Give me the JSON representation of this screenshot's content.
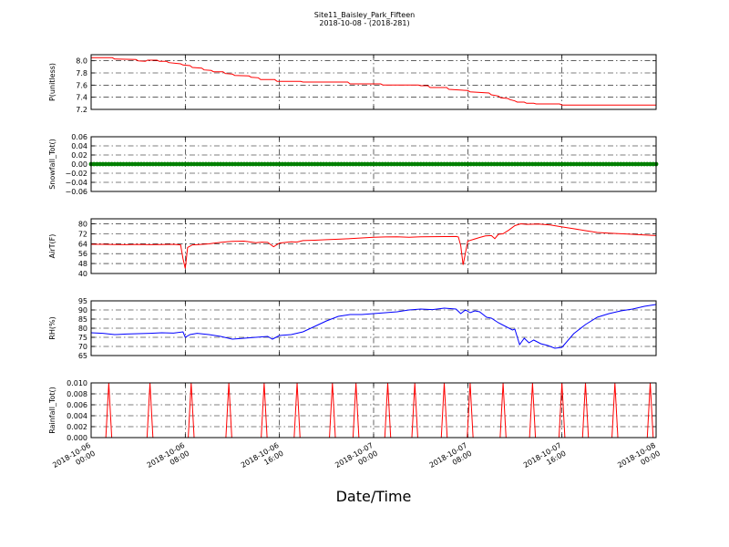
{
  "figure": {
    "title_line1": "Site11_Baisley_Park_Fifteen",
    "title_line2": "2018-10-08 - (2018-281)",
    "xlabel": "Date/Time"
  },
  "chart_data": [
    {
      "type": "line",
      "ylabel": "P(unitless)",
      "ylim": [
        7.2,
        8.1
      ],
      "yticks": [
        "7.2",
        "7.4",
        "7.6",
        "7.8",
        "8.0"
      ],
      "ytick_values": [
        7.2,
        7.4,
        7.6,
        7.8,
        8.0
      ],
      "color": "#ff0000",
      "grid": true,
      "x": [
        0,
        0.1,
        1.8,
        2,
        3.8,
        4,
        4.6,
        4.8,
        5.6,
        5.8,
        6.4,
        6.6,
        7.6,
        7.8,
        8.4,
        8.6,
        9.4,
        9.6,
        10.2,
        10.4,
        11.2,
        11.4,
        12,
        12.2,
        13.4,
        13.6,
        14.2,
        14.4,
        15.6,
        15.8,
        17.8,
        18,
        21.8,
        22,
        24.6,
        24.8,
        27.8,
        28,
        28.6,
        28.8,
        30.2,
        30.4,
        32,
        32.2,
        33.8,
        34,
        34.6,
        34.8,
        35.4,
        35.6,
        36,
        36.2,
        36.8,
        37,
        37.6,
        37.8,
        38.2,
        38.4,
        39.8,
        40,
        41.8,
        42,
        48
      ],
      "y": [
        8.05,
        8.05,
        8.05,
        8.03,
        8.02,
        8.0,
        7.99,
        8.01,
        8.01,
        7.99,
        7.99,
        7.97,
        7.95,
        7.93,
        7.92,
        7.89,
        7.88,
        7.85,
        7.84,
        7.82,
        7.82,
        7.79,
        7.78,
        7.76,
        7.75,
        7.73,
        7.72,
        7.69,
        7.69,
        7.66,
        7.66,
        7.65,
        7.65,
        7.62,
        7.62,
        7.6,
        7.6,
        7.59,
        7.59,
        7.56,
        7.56,
        7.53,
        7.51,
        7.49,
        7.47,
        7.44,
        7.42,
        7.39,
        7.38,
        7.36,
        7.34,
        7.32,
        7.32,
        7.3,
        7.3,
        7.29,
        7.29,
        7.29,
        7.29,
        7.27,
        7.27,
        7.27,
        7.27
      ]
    },
    {
      "type": "scatter",
      "ylabel": "Snowfall_Tot()",
      "ylim": [
        -0.06,
        0.06
      ],
      "yticks": [
        "−0.06",
        "−0.04",
        "−0.02",
        "0.00",
        "0.02",
        "0.04",
        "0.06"
      ],
      "ytick_values": [
        -0.06,
        -0.04,
        -0.02,
        0.0,
        0.02,
        0.04,
        0.06
      ],
      "color": "#008000",
      "grid": true,
      "constant_value": 0.0,
      "sample_interval_hours": 0.25,
      "x_range": [
        0,
        48
      ]
    },
    {
      "type": "line",
      "ylabel": "AirT(F)",
      "ylim": [
        40,
        84
      ],
      "yticks": [
        "40",
        "48",
        "56",
        "64",
        "72",
        "80"
      ],
      "ytick_values": [
        40,
        48,
        56,
        64,
        72,
        80
      ],
      "color": "#ff0000",
      "grid": true,
      "x": [
        0,
        1,
        2,
        3,
        4,
        5,
        6,
        7,
        7.6,
        7.8,
        8,
        8.2,
        8.6,
        9,
        10,
        10.5,
        11,
        11.5,
        12,
        13,
        14,
        14.5,
        15,
        15.5,
        16,
        17,
        17.5,
        18,
        19,
        20,
        21,
        22,
        23,
        24,
        25,
        26,
        27,
        28,
        29,
        30,
        31,
        31.2,
        31.4,
        31.6,
        32,
        32.5,
        33,
        33.5,
        34,
        34.3,
        34.6,
        35,
        35.5,
        36,
        36.5,
        37,
        38,
        39,
        40,
        41,
        42,
        43,
        44,
        45,
        46,
        47,
        48
      ],
      "y": [
        63.5,
        63.5,
        63.3,
        63.2,
        63.4,
        63.2,
        63.3,
        63.5,
        63.0,
        52.0,
        44.0,
        61.0,
        63.0,
        63.2,
        63.8,
        64.5,
        65.0,
        65.5,
        65.8,
        66.0,
        64.8,
        65.2,
        65.0,
        61.5,
        64.5,
        65.5,
        65.3,
        66.5,
        66.8,
        67.2,
        67.6,
        68.0,
        68.6,
        69.2,
        69.4,
        69.5,
        69.2,
        69.5,
        69.6,
        69.7,
        69.8,
        69.4,
        62.5,
        47.0,
        66.0,
        67.5,
        69.0,
        70.2,
        70.5,
        68.0,
        71.5,
        72.0,
        75.0,
        78.5,
        80.0,
        79.5,
        79.8,
        79.0,
        77.5,
        76.0,
        74.5,
        73.0,
        72.5,
        72.0,
        71.5,
        71.0,
        70.5
      ]
    },
    {
      "type": "line",
      "ylabel": "RH(%)",
      "ylim": [
        65,
        95
      ],
      "yticks": [
        "65",
        "70",
        "75",
        "80",
        "85",
        "90",
        "95"
      ],
      "ytick_values": [
        65,
        70,
        75,
        80,
        85,
        90,
        95
      ],
      "color": "#0000ff",
      "grid": true,
      "x": [
        0,
        1,
        2,
        3,
        4,
        5,
        6,
        7,
        7.8,
        8,
        8.4,
        9,
        10,
        11,
        12,
        13,
        14,
        15,
        15.4,
        16,
        17,
        18,
        19,
        20,
        21,
        22,
        23,
        24,
        25,
        26,
        27,
        28,
        29,
        30,
        31,
        31.4,
        31.8,
        32.2,
        32.6,
        33,
        33.6,
        34,
        34.6,
        35.2,
        35.8,
        36,
        36.4,
        36.8,
        37.2,
        37.6,
        38.2,
        38.8,
        39.4,
        40,
        41,
        42,
        43,
        44,
        45,
        46,
        47,
        48
      ],
      "y": [
        77.5,
        77.2,
        76.5,
        76.8,
        77.0,
        77.2,
        77.5,
        77.3,
        78.0,
        75.0,
        76.5,
        77.2,
        76.5,
        75.5,
        74.0,
        74.5,
        75.0,
        75.5,
        74.0,
        76.0,
        76.5,
        78.0,
        81.0,
        84.0,
        86.5,
        87.5,
        87.5,
        88.0,
        88.5,
        89.0,
        90.0,
        90.5,
        90.2,
        91.0,
        90.5,
        88.0,
        90.0,
        88.5,
        89.5,
        89.0,
        86.0,
        85.5,
        83.0,
        81.0,
        79.0,
        79.5,
        71.0,
        74.5,
        72.0,
        73.5,
        71.5,
        70.5,
        69.0,
        69.5,
        77.0,
        82.0,
        86.0,
        88.0,
        89.5,
        90.5,
        92.0,
        93.0
      ]
    },
    {
      "type": "line",
      "ylabel": "Rainfall_Tot()",
      "ylim": [
        0,
        0.01
      ],
      "yticks": [
        "0.000",
        "0.002",
        "0.004",
        "0.006",
        "0.008",
        "0.010"
      ],
      "ytick_values": [
        0,
        0.002,
        0.004,
        0.006,
        0.008,
        0.01
      ],
      "color": "#ff0000",
      "grid": true,
      "spike_value": 0.01,
      "spike_times": [
        1.5,
        5.0,
        8.5,
        11.7,
        14.7,
        17.5,
        20.5,
        22.5,
        25.2,
        27.5,
        30.0,
        32.2,
        35.0,
        37.5,
        40.0,
        42.0,
        44.5,
        47.5
      ]
    }
  ],
  "x_axis": {
    "range_hours": [
      0,
      48
    ],
    "tick_hours": [
      0,
      8,
      16,
      24,
      32,
      40,
      48
    ],
    "tick_labels": [
      [
        "2018-10-06",
        "00:00"
      ],
      [
        "2018-10-06",
        "08:00"
      ],
      [
        "2018-10-06",
        "16:00"
      ],
      [
        "2018-10-07",
        "00:00"
      ],
      [
        "2018-10-07",
        "08:00"
      ],
      [
        "2018-10-07",
        "16:00"
      ],
      [
        "2018-10-08",
        "00:00"
      ]
    ]
  }
}
